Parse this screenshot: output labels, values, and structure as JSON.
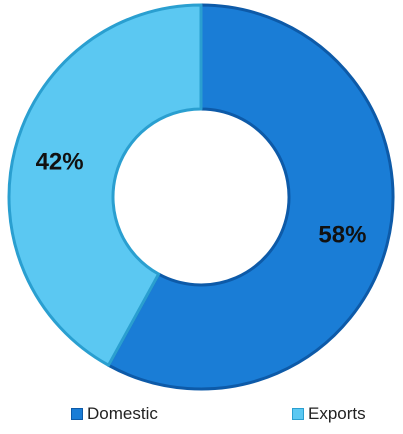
{
  "chart_data": {
    "type": "pie",
    "variant": "donut",
    "categories": [
      "Domestic",
      "Exports"
    ],
    "values": [
      58,
      42
    ],
    "labels": [
      "58%",
      "42%"
    ],
    "colors": [
      "#1a7dd6",
      "#5bc8f2"
    ],
    "edge_colors": [
      "#0d5aa8",
      "#2a9fd0"
    ],
    "legend_position": "bottom",
    "title": ""
  }
}
